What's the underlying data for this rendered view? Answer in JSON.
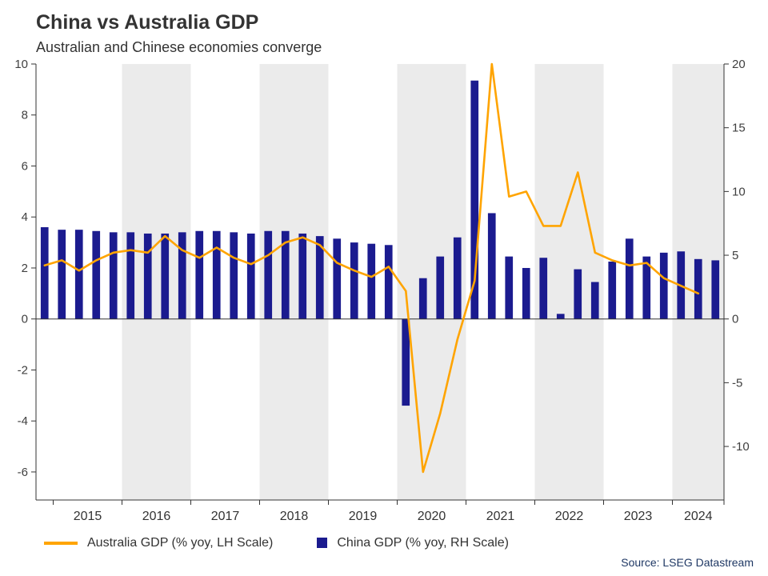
{
  "header": {
    "title": "China vs Australia GDP",
    "subtitle": "Australian and Chinese economies converge"
  },
  "legend": [
    {
      "label": "Australia GDP (% yoy, LH Scale)",
      "color": "#ffa400",
      "swatch": "line"
    },
    {
      "label": "China GDP (% yoy, RH Scale)",
      "color": "#1b1b8f",
      "swatch": "square"
    }
  ],
  "source": "Source: LSEG Datastream",
  "chart_data": {
    "type": "combo (bar + line, dual y-axis)",
    "title": "China vs Australia GDP",
    "subtitle": "Australian and Chinese economies converge",
    "quarters": [
      "2014 Q4",
      "2015 Q1",
      "2015 Q2",
      "2015 Q3",
      "2015 Q4",
      "2016 Q1",
      "2016 Q2",
      "2016 Q3",
      "2016 Q4",
      "2017 Q1",
      "2017 Q2",
      "2017 Q3",
      "2017 Q4",
      "2018 Q1",
      "2018 Q2",
      "2018 Q3",
      "2018 Q4",
      "2019 Q1",
      "2019 Q2",
      "2019 Q3",
      "2019 Q4",
      "2020 Q1",
      "2020 Q2",
      "2020 Q3",
      "2020 Q4",
      "2021 Q1",
      "2021 Q2",
      "2021 Q3",
      "2021 Q4",
      "2022 Q1",
      "2022 Q2",
      "2022 Q3",
      "2022 Q4",
      "2023 Q1",
      "2023 Q2",
      "2023 Q3",
      "2023 Q4",
      "2024 Q1",
      "2024 Q2",
      "2024 Q3"
    ],
    "series": [
      {
        "name": "Australia GDP (% yoy, LH Scale)",
        "type": "line",
        "axis": "left",
        "color": "#ffa400",
        "values": [
          2.1,
          2.3,
          1.9,
          2.3,
          2.6,
          2.7,
          2.6,
          3.25,
          2.7,
          2.4,
          2.8,
          2.4,
          2.15,
          2.5,
          3.0,
          3.2,
          2.9,
          2.2,
          1.9,
          1.65,
          2.05,
          1.1,
          -6.0,
          -3.7,
          -0.8,
          1.5,
          10.0,
          4.8,
          5.0,
          3.65,
          3.65,
          5.75,
          2.6,
          2.3,
          2.1,
          2.2,
          1.6,
          1.3,
          1.0,
          null
        ]
      },
      {
        "name": "China GDP (% yoy, RH Scale)",
        "type": "bar",
        "axis": "right",
        "color": "#1b1b8f",
        "values": [
          7.2,
          7.0,
          7.0,
          6.9,
          6.8,
          6.8,
          6.7,
          6.7,
          6.8,
          6.9,
          6.9,
          6.8,
          6.7,
          6.9,
          6.9,
          6.7,
          6.5,
          6.3,
          6.0,
          5.9,
          5.8,
          -6.8,
          3.2,
          4.9,
          6.4,
          18.7,
          8.3,
          4.9,
          4.0,
          4.8,
          0.4,
          3.9,
          2.9,
          4.5,
          6.3,
          4.9,
          5.2,
          5.3,
          4.7,
          4.6
        ]
      }
    ],
    "left_axis": {
      "min": -7.1,
      "max": 10,
      "ticks": [
        -6,
        -4,
        -2,
        0,
        2,
        4,
        6,
        8,
        10
      ]
    },
    "right_axis": {
      "min": -14.2,
      "max": 20,
      "ticks": [
        -10,
        -5,
        0,
        5,
        10,
        15,
        20
      ]
    },
    "grid": "none (zero line only)",
    "band_color": "#ebebeb",
    "year_groups": [
      {
        "year": "2015",
        "start": 1,
        "count": 4,
        "shaded": false
      },
      {
        "year": "2016",
        "start": 5,
        "count": 4,
        "shaded": true
      },
      {
        "year": "2017",
        "start": 9,
        "count": 4,
        "shaded": false
      },
      {
        "year": "2018",
        "start": 13,
        "count": 4,
        "shaded": true
      },
      {
        "year": "2019",
        "start": 17,
        "count": 4,
        "shaded": false
      },
      {
        "year": "2020",
        "start": 21,
        "count": 4,
        "shaded": true
      },
      {
        "year": "2021",
        "start": 25,
        "count": 4,
        "shaded": false
      },
      {
        "year": "2022",
        "start": 29,
        "count": 4,
        "shaded": true
      },
      {
        "year": "2023",
        "start": 33,
        "count": 4,
        "shaded": false
      },
      {
        "year": "2024",
        "start": 37,
        "count": 3,
        "shaded": true
      }
    ],
    "legend_position": "bottom"
  }
}
